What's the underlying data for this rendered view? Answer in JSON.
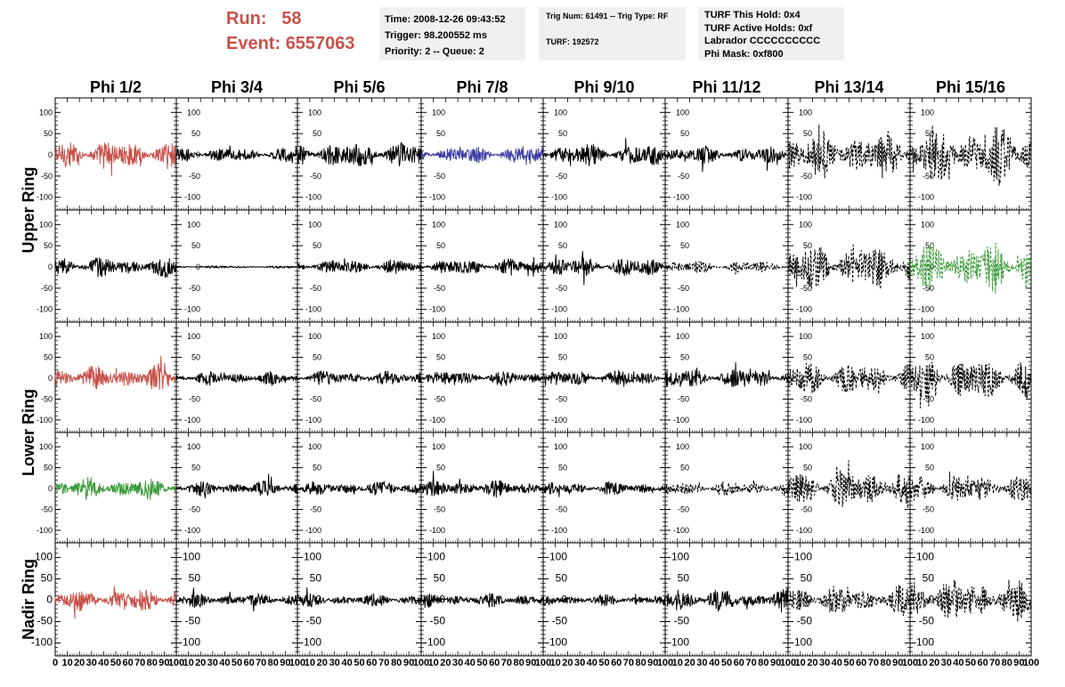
{
  "header": {
    "run_label": "Run:",
    "run_value": "58",
    "event_label": "Event:",
    "event_value": "6557063"
  },
  "info_time": {
    "time": "Time: 2008-12-26 09:43:52",
    "trigger": "Trigger: 98.200552 ms",
    "priority": "Priority: 2 -- Queue: 2"
  },
  "info_trig": {
    "trig_line": "Trig Num: 61491 -- Trig Type: RF",
    "turf_line": "TURF: 192572"
  },
  "info_turf": {
    "hold": "TURF This Hold: 0x4",
    "active": "TURF Active Holds: 0xf",
    "labrador": "Labrador CCCCCCCCCC",
    "phimask": "Phi Mask: 0xf800"
  },
  "colors": {
    "red": "#c8514a",
    "blue": "#3c3ca8",
    "green": "#3a9a3a",
    "black": "#000000"
  },
  "chart_data": {
    "type": "line",
    "columns": [
      "Phi 1/2",
      "Phi 3/4",
      "Phi 5/6",
      "Phi 7/8",
      "Phi 9/10",
      "Phi 11/12",
      "Phi 13/14",
      "Phi 15/16"
    ],
    "ring_labels": [
      {
        "label": "Upper Ring",
        "rows": [
          0,
          1
        ]
      },
      {
        "label": "Lower Ring",
        "rows": [
          2,
          3
        ]
      },
      {
        "label": "Nadir Ring",
        "rows": [
          4,
          4
        ]
      }
    ],
    "xlim": [
      0,
      100
    ],
    "ylim": [
      -130,
      130
    ],
    "x_ticks": [
      0,
      10,
      20,
      30,
      40,
      50,
      60,
      70,
      80,
      90,
      100
    ],
    "x_tick_labels": [
      "0",
      "10",
      "20",
      "30",
      "40",
      "50",
      "60",
      "70",
      "80",
      "90",
      "100"
    ],
    "y_ticks": [
      100,
      50,
      0,
      -50,
      -100
    ],
    "y_tick_labels": [
      "100",
      "50",
      "0",
      "-50",
      "-100"
    ],
    "panels": [
      [
        {
          "color": "red",
          "dashed": false,
          "amp": 24
        },
        {
          "color": "black",
          "dashed": false,
          "amp": 12
        },
        {
          "color": "black",
          "dashed": false,
          "amp": 22
        },
        {
          "color": "blue",
          "dashed": false,
          "amp": 14
        },
        {
          "color": "black",
          "dashed": false,
          "amp": 18
        },
        {
          "color": "black",
          "dashed": false,
          "amp": 14
        },
        {
          "color": "black",
          "dashed": true,
          "amp": 38
        },
        {
          "color": "black",
          "dashed": true,
          "amp": 48
        }
      ],
      [
        {
          "color": "black",
          "dashed": false,
          "amp": 16
        },
        {
          "color": "black",
          "dashed": false,
          "amp": 2
        },
        {
          "color": "black",
          "dashed": false,
          "amp": 12
        },
        {
          "color": "black",
          "dashed": false,
          "amp": 14
        },
        {
          "color": "black",
          "dashed": false,
          "amp": 16
        },
        {
          "color": "black",
          "dashed": true,
          "amp": 10
        },
        {
          "color": "black",
          "dashed": true,
          "amp": 38
        },
        {
          "color": "green",
          "dashed": true,
          "amp": 40
        }
      ],
      [
        {
          "color": "red",
          "dashed": false,
          "amp": 20
        },
        {
          "color": "black",
          "dashed": false,
          "amp": 11
        },
        {
          "color": "black",
          "dashed": false,
          "amp": 12
        },
        {
          "color": "black",
          "dashed": false,
          "amp": 12
        },
        {
          "color": "black",
          "dashed": false,
          "amp": 13
        },
        {
          "color": "black",
          "dashed": false,
          "amp": 16
        },
        {
          "color": "black",
          "dashed": true,
          "amp": 28
        },
        {
          "color": "black",
          "dashed": true,
          "amp": 36
        }
      ],
      [
        {
          "color": "green",
          "dashed": false,
          "amp": 18
        },
        {
          "color": "black",
          "dashed": false,
          "amp": 12
        },
        {
          "color": "black",
          "dashed": false,
          "amp": 12
        },
        {
          "color": "black",
          "dashed": false,
          "amp": 14
        },
        {
          "color": "black",
          "dashed": false,
          "amp": 11
        },
        {
          "color": "black",
          "dashed": true,
          "amp": 12
        },
        {
          "color": "black",
          "dashed": true,
          "amp": 32
        },
        {
          "color": "black",
          "dashed": true,
          "amp": 24
        }
      ],
      [
        {
          "color": "red",
          "dashed": false,
          "amp": 18
        },
        {
          "color": "black",
          "dashed": false,
          "amp": 11
        },
        {
          "color": "black",
          "dashed": false,
          "amp": 10
        },
        {
          "color": "black",
          "dashed": false,
          "amp": 11
        },
        {
          "color": "black",
          "dashed": false,
          "amp": 9
        },
        {
          "color": "black",
          "dashed": false,
          "amp": 18
        },
        {
          "color": "black",
          "dashed": true,
          "amp": 24
        },
        {
          "color": "black",
          "dashed": true,
          "amp": 36
        }
      ]
    ]
  }
}
